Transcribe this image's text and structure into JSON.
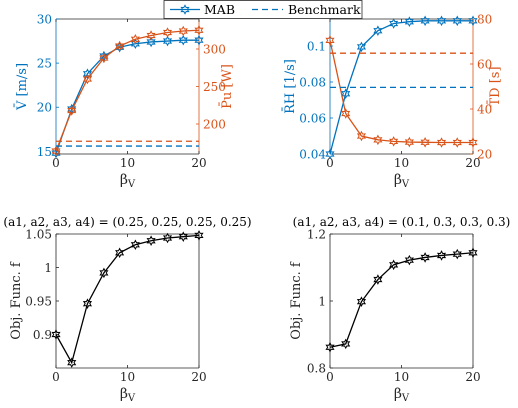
{
  "legend": {
    "entries": [
      {
        "label": "MAB",
        "style": "solid-star",
        "color": "#0072BD"
      },
      {
        "label": "Benchmark",
        "style": "dashed",
        "color": "#0072BD"
      }
    ],
    "placement": "top-center"
  },
  "colors": {
    "blue": "#0072BD",
    "orange": "#D95319",
    "black": "#000000"
  },
  "chart_data": [
    {
      "type": "line",
      "panel": "top-left",
      "title": "",
      "xlabel": "βV",
      "xlim": [
        0,
        20
      ],
      "xticks": [
        0,
        10,
        20
      ],
      "axes": {
        "left": {
          "label": "V̄ [m/s]",
          "color": "#0072BD",
          "ylim": [
            14.7,
            30
          ],
          "ticks": [
            15,
            20,
            25,
            30
          ]
        },
        "right": {
          "label": "P̄u [W]",
          "color": "#D95319",
          "ylim": [
            160,
            340
          ],
          "ticks": [
            200,
            250,
            300
          ]
        }
      },
      "series": [
        {
          "name": "MAB",
          "axis": "left",
          "color": "#0072BD",
          "style": "solid-star",
          "x": [
            0,
            2.2,
            4.4,
            6.7,
            8.9,
            11.1,
            13.3,
            15.6,
            17.8,
            20
          ],
          "y": [
            14.8,
            19.8,
            23.8,
            25.8,
            26.8,
            27.2,
            27.4,
            27.5,
            27.6,
            27.6
          ]
        },
        {
          "name": "MAB",
          "axis": "right",
          "color": "#D95319",
          "style": "solid-star",
          "x": [
            0,
            2.2,
            4.4,
            6.7,
            8.9,
            11.1,
            13.3,
            15.6,
            17.8,
            20
          ],
          "y": [
            164,
            218,
            260,
            288,
            304,
            313,
            318,
            322,
            324,
            325
          ]
        },
        {
          "name": "Benchmark",
          "axis": "left",
          "color": "#0072BD",
          "style": "dashed",
          "x": [
            0,
            20
          ],
          "y": [
            15.6,
            15.6
          ]
        },
        {
          "name": "Benchmark",
          "axis": "right",
          "color": "#D95319",
          "style": "dashed",
          "x": [
            0,
            20
          ],
          "y": [
            177,
            177
          ]
        }
      ]
    },
    {
      "type": "line",
      "panel": "top-right",
      "title": "",
      "xlabel": "βV",
      "xlim": [
        0,
        20
      ],
      "xticks": [
        0,
        10,
        20
      ],
      "axes": {
        "left": {
          "label": "R̄H [1/s]",
          "color": "#0072BD",
          "ylim": [
            0.04,
            0.115
          ],
          "ticks": [
            0.04,
            0.06,
            0.08,
            0.1
          ]
        },
        "right": {
          "label": "T̄D [s]",
          "color": "#D95319",
          "ylim": [
            20,
            80
          ],
          "ticks": [
            20,
            40,
            60,
            80
          ]
        }
      },
      "series": [
        {
          "name": "MAB",
          "axis": "left",
          "color": "#0072BD",
          "style": "solid-star",
          "x": [
            0,
            2.2,
            4.4,
            6.7,
            8.9,
            11.1,
            13.3,
            15.6,
            17.8,
            20
          ],
          "y": [
            0.04,
            0.0735,
            0.0995,
            0.1085,
            0.1125,
            0.1135,
            0.114,
            0.114,
            0.114,
            0.114
          ]
        },
        {
          "name": "MAB",
          "axis": "right",
          "color": "#D95319",
          "style": "solid-star",
          "x": [
            0,
            2.2,
            4.4,
            6.7,
            8.9,
            11.1,
            13.3,
            15.6,
            17.8,
            20
          ],
          "y": [
            70.5,
            38,
            28,
            26.3,
            25.6,
            25.3,
            25.2,
            25.1,
            25.1,
            25.1
          ]
        },
        {
          "name": "Benchmark",
          "axis": "left",
          "color": "#0072BD",
          "style": "dashed",
          "x": [
            0,
            20
          ],
          "y": [
            0.077,
            0.077
          ]
        },
        {
          "name": "Benchmark",
          "axis": "right",
          "color": "#D95319",
          "style": "dashed",
          "x": [
            0,
            20
          ],
          "y": [
            64.8,
            64.8
          ]
        }
      ]
    },
    {
      "type": "line",
      "panel": "bottom-left",
      "title": "(a1, a2, a3, a4) = (0.25, 0.25, 0.25, 0.25)",
      "xlabel": "βV",
      "ylabel": "Obj. Func. f",
      "xlim": [
        0,
        20
      ],
      "xticks": [
        0,
        10,
        20
      ],
      "ylim": [
        0.85,
        1.05
      ],
      "yticks": [
        0.9,
        0.95,
        1,
        1.05
      ],
      "series": [
        {
          "color": "#000000",
          "style": "solid-star",
          "x": [
            0,
            2.2,
            4.4,
            6.7,
            8.9,
            11.1,
            13.3,
            15.6,
            17.8,
            20
          ],
          "y": [
            0.9,
            0.858,
            0.946,
            0.992,
            1.022,
            1.034,
            1.04,
            1.044,
            1.046,
            1.048
          ]
        }
      ]
    },
    {
      "type": "line",
      "panel": "bottom-right",
      "title": "(a1, a2, a3, a4) = (0.1, 0.3, 0.3, 0.3)",
      "xlabel": "βV",
      "ylabel": "Obj. Func. f",
      "xlim": [
        0,
        20
      ],
      "xticks": [
        0,
        10,
        20
      ],
      "ylim": [
        0.8,
        1.2
      ],
      "yticks": [
        0.8,
        1,
        1.2
      ],
      "series": [
        {
          "color": "#000000",
          "style": "solid-star",
          "x": [
            0,
            2.2,
            4.4,
            6.7,
            8.9,
            11.1,
            13.3,
            15.6,
            17.8,
            20
          ],
          "y": [
            0.862,
            0.872,
            0.998,
            1.064,
            1.108,
            1.122,
            1.13,
            1.136,
            1.14,
            1.144
          ]
        }
      ]
    }
  ]
}
